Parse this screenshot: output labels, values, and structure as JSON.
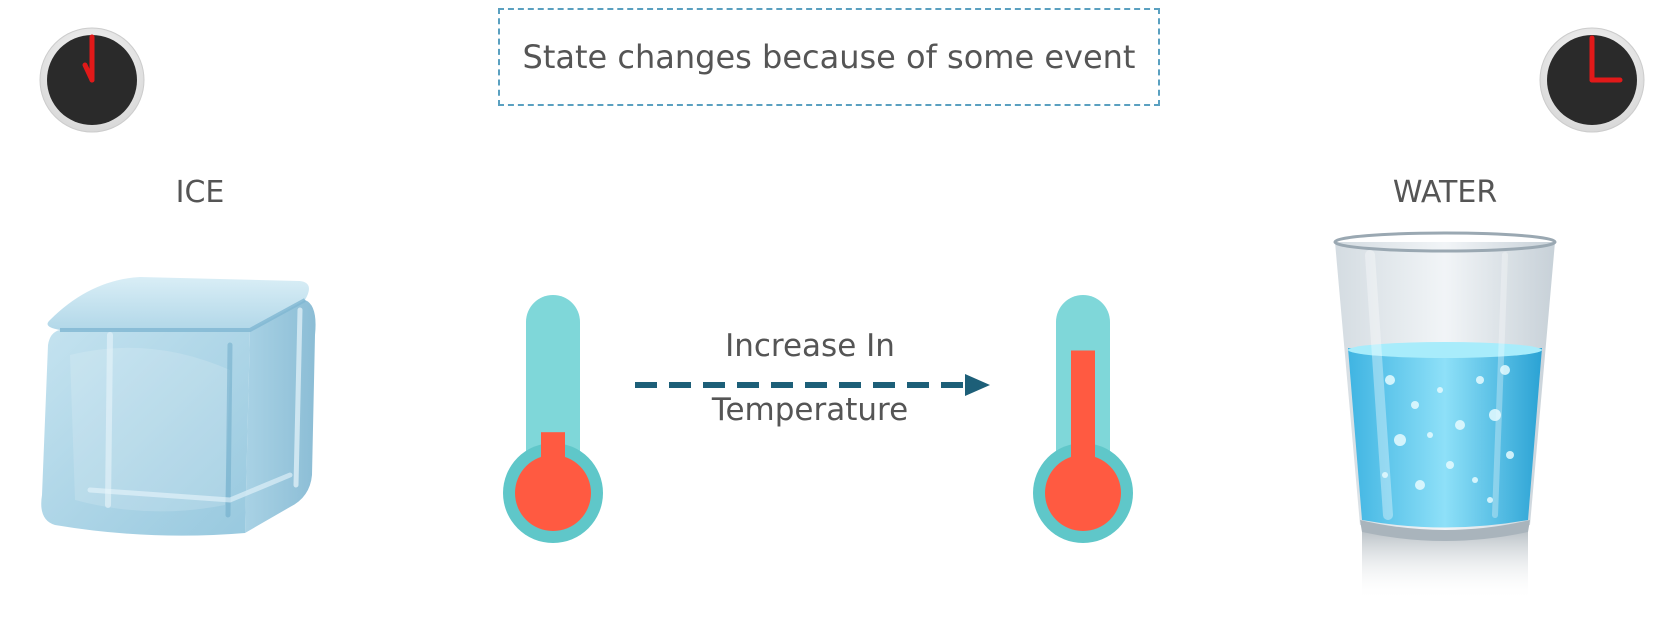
{
  "title": "State changes because of some event",
  "states": {
    "from_label": "ICE",
    "to_label": "WATER"
  },
  "event": {
    "line1": "Increase In",
    "line2": "Temperature"
  },
  "icons": {
    "clock_left": "clock-icon",
    "clock_right": "clock-icon",
    "ice": "ice-cube-icon",
    "water": "glass-of-water-icon",
    "thermo_low": "thermometer-low-icon",
    "thermo_high": "thermometer-high-icon",
    "arrow": "arrow-right-icon"
  },
  "colors": {
    "thermo_tube": "#7fd7d9",
    "mercury": "#ff5a41",
    "arrow": "#1d5f78",
    "ice": "#a8d4e8",
    "water": "#5cc8ec",
    "clock_face": "#2a2a2a",
    "clock_hand": "#e11919"
  },
  "thermometers": {
    "low_level": 0.12,
    "high_level": 0.55
  }
}
